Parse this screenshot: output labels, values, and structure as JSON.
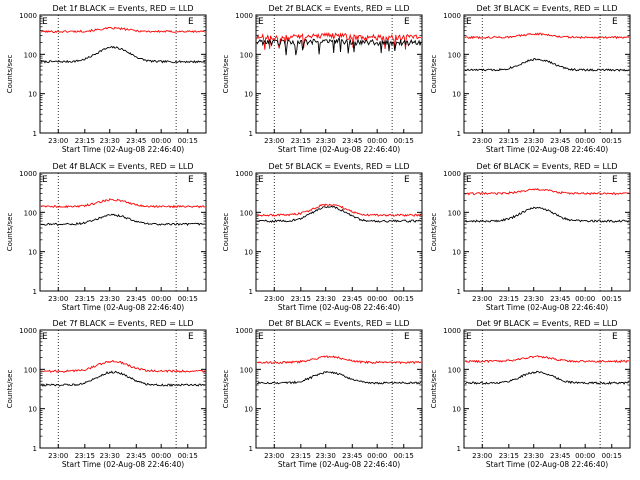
{
  "chart_data": {
    "type": "line",
    "xlabel": "Start Time (02-Aug-08 22:46:40)",
    "ylabel": "Counts/sec",
    "yscale": "log",
    "ylim": [
      1,
      1000
    ],
    "ytick_labels": [
      "1",
      "10",
      "100",
      "1000"
    ],
    "xtick_labels": [
      "23:00",
      "23:15",
      "23:30",
      "23:45",
      "00:00",
      "00:15"
    ],
    "series_colors": {
      "events": "#000000",
      "lld": "#ff0000"
    },
    "corner_labels": [
      "E",
      "E"
    ],
    "panels": [
      {
        "title": "Det 1f BLACK = Events, RED = LLD",
        "events": {
          "base": 65,
          "peak": 150
        },
        "lld": {
          "base": 380,
          "peak": 460
        }
      },
      {
        "title": "Det 2f BLACK = Events, RED = LLD",
        "events": {
          "base": 200,
          "peak": 220
        },
        "lld": {
          "base": 270,
          "peak": 300
        }
      },
      {
        "title": "Det 3f BLACK = Events, RED = LLD",
        "events": {
          "base": 40,
          "peak": 75
        },
        "lld": {
          "base": 270,
          "peak": 330
        }
      },
      {
        "title": "Det 4f BLACK = Events, RED = LLD",
        "events": {
          "base": 50,
          "peak": 85
        },
        "lld": {
          "base": 140,
          "peak": 210
        }
      },
      {
        "title": "Det 5f BLACK = Events, RED = LLD",
        "events": {
          "base": 60,
          "peak": 140
        },
        "lld": {
          "base": 85,
          "peak": 160
        }
      },
      {
        "title": "Det 6f BLACK = Events, RED = LLD",
        "events": {
          "base": 60,
          "peak": 130
        },
        "lld": {
          "base": 300,
          "peak": 380
        }
      },
      {
        "title": "Det 7f BLACK = Events, RED = LLD",
        "events": {
          "base": 40,
          "peak": 85
        },
        "lld": {
          "base": 90,
          "peak": 160
        }
      },
      {
        "title": "Det 8f BLACK = Events, RED = LLD",
        "events": {
          "base": 45,
          "peak": 85
        },
        "lld": {
          "base": 150,
          "peak": 210
        }
      },
      {
        "title": "Det 9f BLACK = Events, RED = LLD",
        "events": {
          "base": 45,
          "peak": 85
        },
        "lld": {
          "base": 160,
          "peak": 210
        }
      }
    ]
  }
}
